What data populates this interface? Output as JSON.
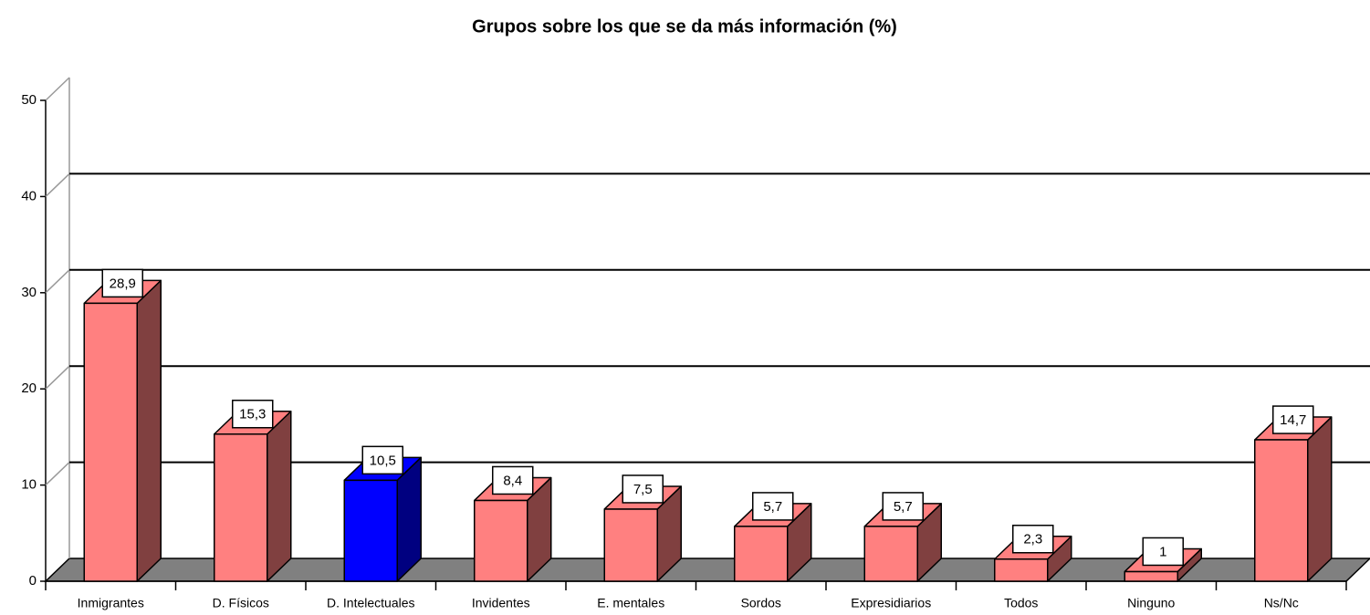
{
  "chart_data": {
    "type": "bar3d",
    "title": "Grupos sobre los que se da más información (%)",
    "categories": [
      "Inmigrantes",
      "D. Físicos",
      "D. Intelectuales",
      "Invidentes",
      "E. mentales",
      "Sordos",
      "Expresidiarios",
      "Todos",
      "Ninguno",
      "Ns/Nc"
    ],
    "values": [
      28.9,
      15.3,
      10.5,
      8.4,
      7.5,
      5.7,
      5.7,
      2.3,
      1,
      14.7
    ],
    "value_labels": [
      "28,9",
      "15,3",
      "10,5",
      "8,4",
      "7,5",
      "5,7",
      "5,7",
      "2,3",
      "1",
      "14,7"
    ],
    "colors": [
      "#ff8080",
      "#ff8080",
      "#0000ff",
      "#ff8080",
      "#ff8080",
      "#ff8080",
      "#ff8080",
      "#ff8080",
      "#ff8080",
      "#ff8080"
    ],
    "side_colors": [
      "#804040",
      "#804040",
      "#000080",
      "#804040",
      "#804040",
      "#804040",
      "#804040",
      "#804040",
      "#804040",
      "#804040"
    ],
    "ylim": [
      0,
      50
    ],
    "yticks": [
      0,
      10,
      20,
      30,
      40,
      50
    ],
    "grid": true
  }
}
